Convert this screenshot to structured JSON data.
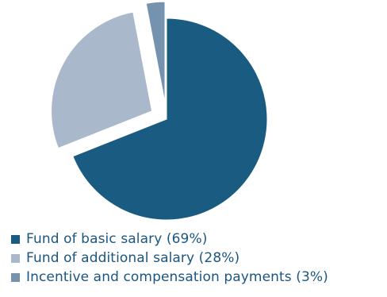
{
  "chart_data": {
    "type": "pie",
    "title": "",
    "slices": [
      {
        "label": "Fund of basic salary (69%)",
        "value": 69,
        "color": "#1a5b82",
        "exploded": false
      },
      {
        "label": "Fund of additional salary (28%)",
        "value": 28,
        "color": "#a9b8cb",
        "exploded": true
      },
      {
        "label": "Incentive and compensation payments (3%)",
        "value": 3,
        "color": "#7592ae",
        "exploded": true
      }
    ],
    "legend_position": "bottom-left"
  }
}
